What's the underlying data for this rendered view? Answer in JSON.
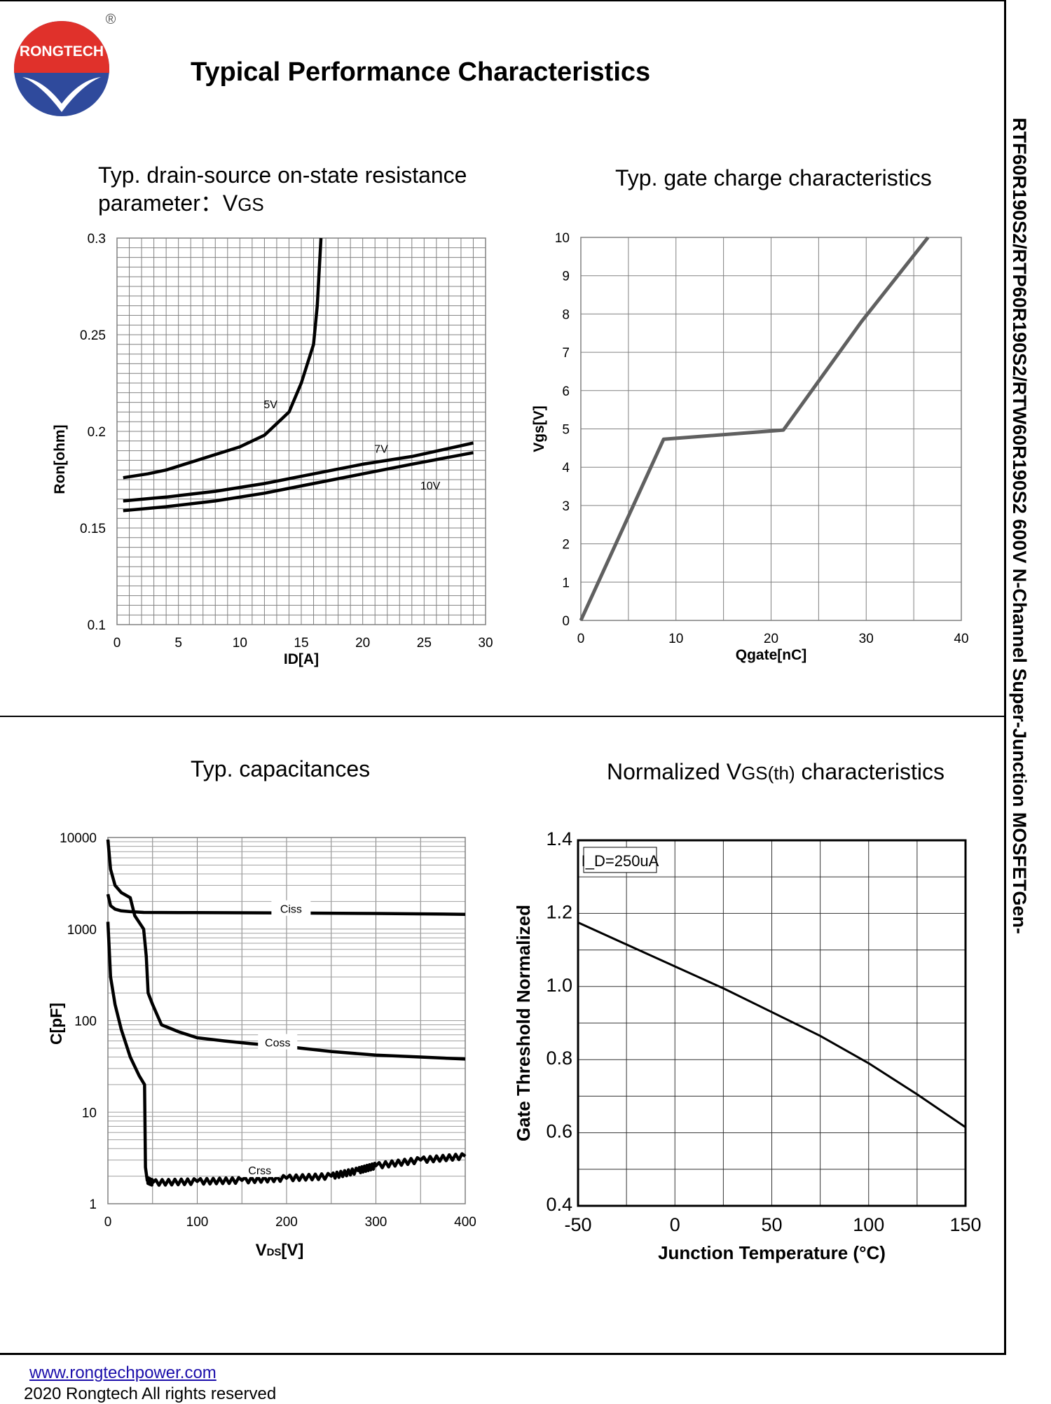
{
  "brand": {
    "name": "RONGTECH",
    "registered": "®"
  },
  "page_title": "Typical Performance Characteristics",
  "side_text": "RTF60R190S2/RTP60R190S2/RTW60R190S2 600V N-Channel Super-Junction MOSFETGen-",
  "footer": {
    "url": "www.rongtechpower.com",
    "copyright": "2020 Rongtech All rights reserved"
  },
  "colors": {
    "line": "#000000",
    "grid": "#808080",
    "gate_line": "#606060"
  },
  "chart_data": [
    {
      "id": "ron",
      "type": "line",
      "title_line1": "Typ. drain-source on-state resistance",
      "title_line2": "parameter：V",
      "title_sub": "GS",
      "xlabel": "ID[A]",
      "ylabel": "Ron[ohm]",
      "xlim": [
        0,
        30
      ],
      "ylim": [
        0.1,
        0.3
      ],
      "x_ticks": [
        "0",
        "5",
        "10",
        "15",
        "20",
        "25",
        "30"
      ],
      "y_ticks": [
        "0.1",
        "0.15",
        "0.2",
        "0.25",
        "0.3"
      ],
      "series": [
        {
          "name": "5V",
          "label_at": [
            12.5,
            0.212
          ],
          "points": [
            [
              0.5,
              0.176
            ],
            [
              2.5,
              0.178
            ],
            [
              4,
              0.18
            ],
            [
              6,
              0.184
            ],
            [
              8,
              0.188
            ],
            [
              10,
              0.192
            ],
            [
              12,
              0.198
            ],
            [
              14,
              0.21
            ],
            [
              15,
              0.225
            ],
            [
              16,
              0.245
            ],
            [
              16.3,
              0.265
            ],
            [
              16.6,
              0.3
            ]
          ]
        },
        {
          "name": "7V",
          "label_at": [
            21.5,
            0.189
          ],
          "points": [
            [
              0.5,
              0.164
            ],
            [
              4,
              0.166
            ],
            [
              8,
              0.169
            ],
            [
              12,
              0.173
            ],
            [
              16,
              0.178
            ],
            [
              20,
              0.183
            ],
            [
              24,
              0.187
            ],
            [
              29,
              0.194
            ]
          ]
        },
        {
          "name": "10V",
          "label_at": [
            25.5,
            0.17
          ],
          "points": [
            [
              0.5,
              0.159
            ],
            [
              4,
              0.161
            ],
            [
              8,
              0.164
            ],
            [
              12,
              0.168
            ],
            [
              16,
              0.173
            ],
            [
              20,
              0.178
            ],
            [
              24,
              0.183
            ],
            [
              29,
              0.189
            ]
          ]
        }
      ]
    },
    {
      "id": "gate",
      "type": "line",
      "title": "Typ. gate charge characteristics",
      "xlabel": "Qgate[nC]",
      "ylabel": "Vgs[V]",
      "xlim": [
        0,
        40
      ],
      "ylim": [
        0,
        10
      ],
      "x_ticks": [
        "0",
        "10",
        "20",
        "30",
        "40"
      ],
      "y_ticks": [
        "0",
        "1",
        "2",
        "3",
        "4",
        "5",
        "6",
        "7",
        "8",
        "9",
        "10"
      ],
      "series": [
        {
          "name": "Vgs",
          "points": [
            [
              0,
              0
            ],
            [
              8.7,
              4.73
            ],
            [
              21.3,
              4.97
            ],
            [
              29.5,
              7.8
            ],
            [
              36.5,
              10
            ]
          ]
        }
      ]
    },
    {
      "id": "cap",
      "type": "line",
      "title": "Typ. capacitances",
      "xlabel": "V",
      "xlabel_sub": "DS",
      "xlabel_unit": "[V]",
      "ylabel": "C[pF]",
      "xlim": [
        0,
        400
      ],
      "ylim": [
        1,
        10000
      ],
      "yscale": "log",
      "x_ticks": [
        "0",
        "100",
        "200",
        "300",
        "400"
      ],
      "y_ticks": [
        "1",
        "10",
        "100",
        "1000",
        "10000"
      ],
      "series": [
        {
          "name": "Ciss",
          "label_at": [
            205,
            1500
          ],
          "points": [
            [
              0,
              2400
            ],
            [
              3,
              1800
            ],
            [
              8,
              1650
            ],
            [
              15,
              1580
            ],
            [
              25,
              1550
            ],
            [
              40,
              1520
            ],
            [
              100,
              1510
            ],
            [
              200,
              1500
            ],
            [
              300,
              1480
            ],
            [
              400,
              1450
            ]
          ]
        },
        {
          "name": "Coss",
          "label_at": [
            190,
            52
          ],
          "points": [
            [
              0,
              9500
            ],
            [
              3,
              4500
            ],
            [
              8,
              3000
            ],
            [
              15,
              2500
            ],
            [
              25,
              2200
            ],
            [
              30,
              1400
            ],
            [
              40,
              1000
            ],
            [
              43,
              500
            ],
            [
              45,
              200
            ],
            [
              50,
              150
            ],
            [
              60,
              90
            ],
            [
              80,
              75
            ],
            [
              100,
              65
            ],
            [
              130,
              60
            ],
            [
              160,
              56
            ],
            [
              200,
              52
            ],
            [
              250,
              46
            ],
            [
              300,
              42
            ],
            [
              350,
              40
            ],
            [
              400,
              38
            ]
          ]
        },
        {
          "name": "Crss",
          "label_at": [
            170,
            2.1
          ],
          "points": [
            [
              0,
              1200
            ],
            [
              3,
              300
            ],
            [
              8,
              150
            ],
            [
              15,
              80
            ],
            [
              25,
              40
            ],
            [
              35,
              25
            ],
            [
              41,
              20
            ],
            [
              42,
              2.5
            ],
            [
              44,
              1.8
            ],
            [
              50,
              1.7
            ],
            [
              100,
              1.75
            ],
            [
              150,
              1.8
            ],
            [
              200,
              1.9
            ],
            [
              250,
              2.0
            ],
            [
              280,
              2.3
            ],
            [
              300,
              2.6
            ],
            [
              350,
              3.0
            ],
            [
              400,
              3.3
            ]
          ]
        }
      ]
    },
    {
      "id": "vth",
      "type": "line",
      "title": "Normalized V",
      "title_sub": "GS(th)",
      "title_suffix": " characteristics",
      "xlabel": "Junction Temperature (°C)",
      "ylabel": "Gate Threshold Normalized",
      "annotation": "I_D=250uA",
      "xlim": [
        -50,
        150
      ],
      "ylim": [
        0.4,
        1.4
      ],
      "x_ticks": [
        "-50",
        "0",
        "50",
        "100",
        "150"
      ],
      "y_ticks": [
        "0.4",
        "0.6",
        "0.8",
        "1.0",
        "1.2",
        "1.4"
      ],
      "series": [
        {
          "name": "Vth",
          "points": [
            [
              -50,
              1.175
            ],
            [
              -25,
              1.115
            ],
            [
              0,
              1.055
            ],
            [
              25,
              0.995
            ],
            [
              50,
              0.93
            ],
            [
              75,
              0.865
            ],
            [
              100,
              0.79
            ],
            [
              125,
              0.705
            ],
            [
              150,
              0.615
            ]
          ]
        }
      ]
    }
  ]
}
